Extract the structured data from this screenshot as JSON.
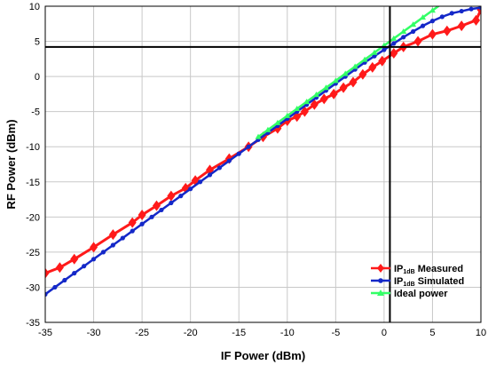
{
  "chart_data": {
    "type": "line",
    "xlabel": "IF Power (dBm)",
    "ylabel": "RF Power (dBm)",
    "xlim": [
      -35,
      10
    ],
    "ylim": [
      -35,
      10
    ],
    "xticks": [
      "-35",
      "-30",
      "-25",
      "-20",
      "-15",
      "-10",
      "-5",
      "0",
      "5",
      "10"
    ],
    "yticks": [
      "10",
      "5",
      "0",
      "-5",
      "-10",
      "-15",
      "-20",
      "-25",
      "-30",
      "-35"
    ],
    "grid": true,
    "legend_position": "bottom-right",
    "reference_lines": {
      "vertical_x": 0.6,
      "horizontal_y": 4.2
    },
    "series": [
      {
        "name": "IP1dB Measured",
        "legend_main": "IP",
        "legend_sub": "1dB",
        "legend_rest": " Measured",
        "color": "#ff1a1a",
        "marker": "diamond",
        "x": [
          -35,
          -33.5,
          -32,
          -30,
          -28,
          -26,
          -25,
          -23.5,
          -22,
          -20.5,
          -19.5,
          -18,
          -16,
          -14,
          -12.5,
          -11,
          -10,
          -9,
          -8.2,
          -7.2,
          -6.2,
          -5.2,
          -4.2,
          -3.2,
          -2.2,
          -1.2,
          -0.2,
          1,
          2,
          3.5,
          5,
          6.5,
          8,
          9.5,
          10
        ],
        "y": [
          -28,
          -27.2,
          -26,
          -24.3,
          -22.5,
          -20.8,
          -19.7,
          -18.4,
          -17,
          -15.9,
          -14.8,
          -13.3,
          -11.7,
          -10,
          -8.6,
          -7.4,
          -6.3,
          -5.7,
          -5,
          -4,
          -3.2,
          -2.5,
          -1.6,
          -0.8,
          0.3,
          1.3,
          2.2,
          3.3,
          4.2,
          5,
          6,
          6.5,
          7.2,
          8,
          9.5
        ]
      },
      {
        "name": "IP1dB Simulated",
        "legend_main": "IP",
        "legend_sub": "1dB",
        "legend_rest": " Simulated",
        "color": "#1428c8",
        "marker": "circle",
        "x": [
          -35,
          -34,
          -33,
          -32,
          -31,
          -30,
          -29,
          -28,
          -27,
          -26,
          -25,
          -24,
          -23,
          -22,
          -21,
          -20,
          -19,
          -18,
          -17,
          -16,
          -15,
          -14,
          -13,
          -12,
          -11,
          -10,
          -9,
          -8,
          -7,
          -6,
          -5,
          -4,
          -3,
          -2,
          -1,
          0,
          1,
          2,
          3,
          4,
          5,
          6,
          7,
          8,
          9,
          10
        ],
        "y": [
          -31,
          -30,
          -29,
          -28,
          -27,
          -26,
          -25,
          -24,
          -23,
          -22,
          -21,
          -20,
          -19,
          -18,
          -17,
          -16,
          -15,
          -14,
          -13,
          -12,
          -11,
          -10,
          -9,
          -8,
          -7,
          -6,
          -5,
          -4,
          -3,
          -2,
          -1,
          0,
          1,
          2,
          2.9,
          3.8,
          4.7,
          5.6,
          6.4,
          7.2,
          7.9,
          8.5,
          9,
          9.3,
          9.6,
          9.8
        ]
      },
      {
        "name": "Ideal power",
        "legend_main": "Ideal power",
        "legend_sub": "",
        "legend_rest": "",
        "color": "#33ff66",
        "marker": "triangle",
        "x": [
          -13,
          -12,
          -11,
          -10,
          -9,
          -8,
          -7,
          -6,
          -5,
          -4,
          -3,
          -2,
          -1,
          0,
          1,
          2,
          3,
          4,
          5,
          6
        ],
        "y": [
          -8.6,
          -7.6,
          -6.6,
          -5.6,
          -4.6,
          -3.6,
          -2.6,
          -1.6,
          -0.6,
          0.4,
          1.4,
          2.4,
          3.4,
          4.4,
          5.4,
          6.4,
          7.4,
          8.4,
          9.4,
          10.4
        ]
      }
    ]
  }
}
